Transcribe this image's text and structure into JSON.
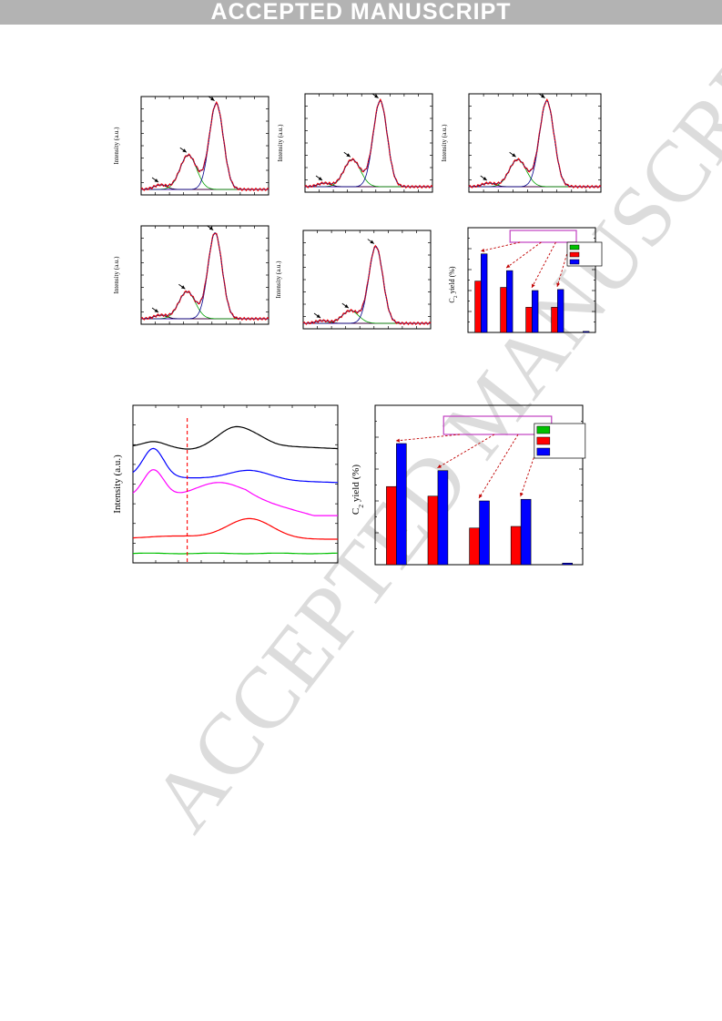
{
  "banner": {
    "text": "ACCEPTED MANUSCRIPT"
  },
  "watermark": {
    "text": "ACCEPTED MANUSCRIPT"
  },
  "colors": {
    "banner_bg": "#b3b3b3",
    "red": "#ff0000",
    "blue": "#0000ff",
    "green": "#00c000",
    "magenta": "#ff00ff",
    "black": "#000000",
    "legend_box": "#c040c0"
  },
  "labels": {
    "intensity_au": "Intensity (a.u.)",
    "c2_yield_main": "C",
    "c2_yield_sub": "2",
    "c2_yield_rest": " yield (%)"
  },
  "chart_data": [
    {
      "type": "line",
      "panel": "xps-1",
      "ylabel": "Intensity (a.u.)",
      "series": [
        {
          "name": "",
          "role": "peak-low",
          "center": 0.15,
          "height": 0.05
        },
        {
          "name": "",
          "role": "peak-mid",
          "center": 0.37,
          "height": 0.38
        },
        {
          "name": "",
          "role": "peak-high",
          "center": 0.59,
          "height": 0.95
        }
      ]
    },
    {
      "type": "line",
      "panel": "xps-2",
      "ylabel": "Intensity (a.u.)",
      "series": [
        {
          "name": "",
          "role": "peak-low",
          "center": 0.15,
          "height": 0.04
        },
        {
          "name": "",
          "role": "peak-mid",
          "center": 0.37,
          "height": 0.3
        },
        {
          "name": "",
          "role": "peak-high",
          "center": 0.59,
          "height": 0.95
        }
      ]
    },
    {
      "type": "line",
      "panel": "xps-3",
      "ylabel": "Intensity (a.u.)",
      "series": [
        {
          "name": "",
          "role": "peak-low",
          "center": 0.15,
          "height": 0.04
        },
        {
          "name": "",
          "role": "peak-mid",
          "center": 0.37,
          "height": 0.3
        },
        {
          "name": "",
          "role": "peak-high",
          "center": 0.59,
          "height": 0.95
        }
      ]
    },
    {
      "type": "line",
      "panel": "xps-4",
      "ylabel": "Intensity (a.u.)",
      "series": [
        {
          "name": "",
          "role": "peak-low",
          "center": 0.15,
          "height": 0.04
        },
        {
          "name": "",
          "role": "peak-mid",
          "center": 0.36,
          "height": 0.3
        },
        {
          "name": "",
          "role": "peak-high",
          "center": 0.58,
          "height": 0.95
        }
      ]
    },
    {
      "type": "line",
      "panel": "xps-5",
      "ylabel": "Intensity (a.u.)",
      "series": [
        {
          "name": "",
          "role": "peak-low",
          "center": 0.15,
          "height": 0.03
        },
        {
          "name": "",
          "role": "peak-mid",
          "center": 0.37,
          "height": 0.14
        },
        {
          "name": "",
          "role": "peak-high",
          "center": 0.57,
          "height": 0.85
        }
      ]
    },
    {
      "type": "bar",
      "panel": "yield-small",
      "ylabel": "C2 yield (%)",
      "ylim": [
        0,
        1.0
      ],
      "categories": [
        "",
        "",
        "",
        "",
        ""
      ],
      "series": [
        {
          "name": "",
          "color": "#00c000",
          "values": [
            0,
            0,
            0,
            0,
            0
          ]
        },
        {
          "name": "",
          "color": "#ff0000",
          "values": [
            0.49,
            0.43,
            0.24,
            0.24,
            0.0
          ]
        },
        {
          "name": "",
          "color": "#0000ff",
          "values": [
            0.75,
            0.59,
            0.4,
            0.41,
            0.01
          ]
        }
      ]
    },
    {
      "type": "line",
      "panel": "tpd",
      "ylabel": "Intensity (a.u.)",
      "series": [
        {
          "name": "",
          "color": "#000000"
        },
        {
          "name": "",
          "color": "#0000ff"
        },
        {
          "name": "",
          "color": "#ff00ff"
        },
        {
          "name": "",
          "color": "#ff0000"
        },
        {
          "name": "",
          "color": "#00c000"
        }
      ]
    },
    {
      "type": "bar",
      "panel": "yield-large",
      "ylabel": "C2 yield (%)",
      "ylim": [
        0,
        1.0
      ],
      "categories": [
        "",
        "",
        "",
        "",
        ""
      ],
      "series": [
        {
          "name": "",
          "color": "#00c000",
          "values": [
            0,
            0,
            0,
            0,
            0
          ]
        },
        {
          "name": "",
          "color": "#ff0000",
          "values": [
            0.49,
            0.43,
            0.23,
            0.24,
            0.0
          ]
        },
        {
          "name": "",
          "color": "#0000ff",
          "values": [
            0.76,
            0.59,
            0.4,
            0.41,
            0.01
          ]
        }
      ]
    }
  ]
}
